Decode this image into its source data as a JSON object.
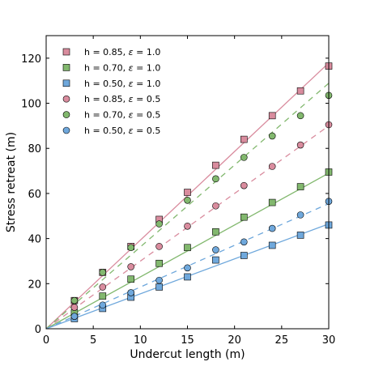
{
  "chart_data": {
    "type": "scatter",
    "xlabel": "Undercut length (m)",
    "ylabel": "Stress retreat (m)",
    "xlim": [
      0,
      30
    ],
    "ylim": [
      0,
      130
    ],
    "xticks": [
      0,
      5,
      10,
      15,
      20,
      25,
      30
    ],
    "yticks": [
      0,
      20,
      40,
      60,
      80,
      100,
      120
    ],
    "grid": false,
    "legend_position": "top-left",
    "x": [
      3,
      6,
      9,
      12,
      15,
      18,
      21,
      24,
      27,
      30
    ],
    "series": [
      {
        "name": "h = 0.85, ε = 1.0",
        "label_parts": [
          "h = 0.85, ",
          "ε",
          " = 1.0"
        ],
        "marker": "square",
        "color": "#d98c9e",
        "line_style": "solid",
        "line_slope": 3.93,
        "values": [
          12.5,
          25.0,
          36.5,
          48.5,
          60.5,
          72.5,
          84.0,
          94.5,
          105.5,
          116.5
        ]
      },
      {
        "name": "h = 0.70, ε = 1.0",
        "label_parts": [
          "h = 0.70, ",
          "ε",
          " = 1.0"
        ],
        "marker": "square",
        "color": "#82b86e",
        "line_style": "solid",
        "line_slope": 2.3,
        "values": [
          7.0,
          14.5,
          22.0,
          29.0,
          36.0,
          43.0,
          49.5,
          56.0,
          63.0,
          69.5
        ]
      },
      {
        "name": "h = 0.50, ε = 1.0",
        "label_parts": [
          "h = 0.50, ",
          "ε",
          " = 1.0"
        ],
        "marker": "square",
        "color": "#6fa8dc",
        "line_style": "solid",
        "line_slope": 1.55,
        "values": [
          4.5,
          9.0,
          14.0,
          18.5,
          23.0,
          30.5,
          32.5,
          37.0,
          41.5,
          46.0
        ]
      },
      {
        "name": "h = 0.85, ε = 0.5",
        "label_parts": [
          "h = 0.85, ",
          "ε",
          " = 0.5"
        ],
        "marker": "circle",
        "color": "#d98c9e",
        "line_style": "dashed",
        "line_slope": 3.0,
        "values": [
          9.5,
          18.5,
          27.5,
          36.5,
          45.5,
          54.5,
          63.5,
          72.0,
          81.5,
          90.5
        ]
      },
      {
        "name": "h = 0.70, ε = 0.5",
        "label_parts": [
          "h = 0.70, ",
          "ε",
          " = 0.5"
        ],
        "marker": "circle",
        "color": "#82b86e",
        "line_style": "dashed",
        "line_slope": 3.63,
        "values": [
          12.5,
          25.0,
          36.0,
          46.5,
          57.0,
          66.5,
          76.0,
          85.5,
          94.5,
          103.5
        ]
      },
      {
        "name": "h = 0.50, ε = 0.5",
        "label_parts": [
          "h = 0.50, ",
          "ε",
          " = 0.5"
        ],
        "marker": "circle",
        "color": "#6fa8dc",
        "line_style": "dashed",
        "line_slope": 1.85,
        "values": [
          5.5,
          10.5,
          16.0,
          21.5,
          27.0,
          35.0,
          38.5,
          44.5,
          50.5,
          56.5
        ]
      }
    ]
  }
}
